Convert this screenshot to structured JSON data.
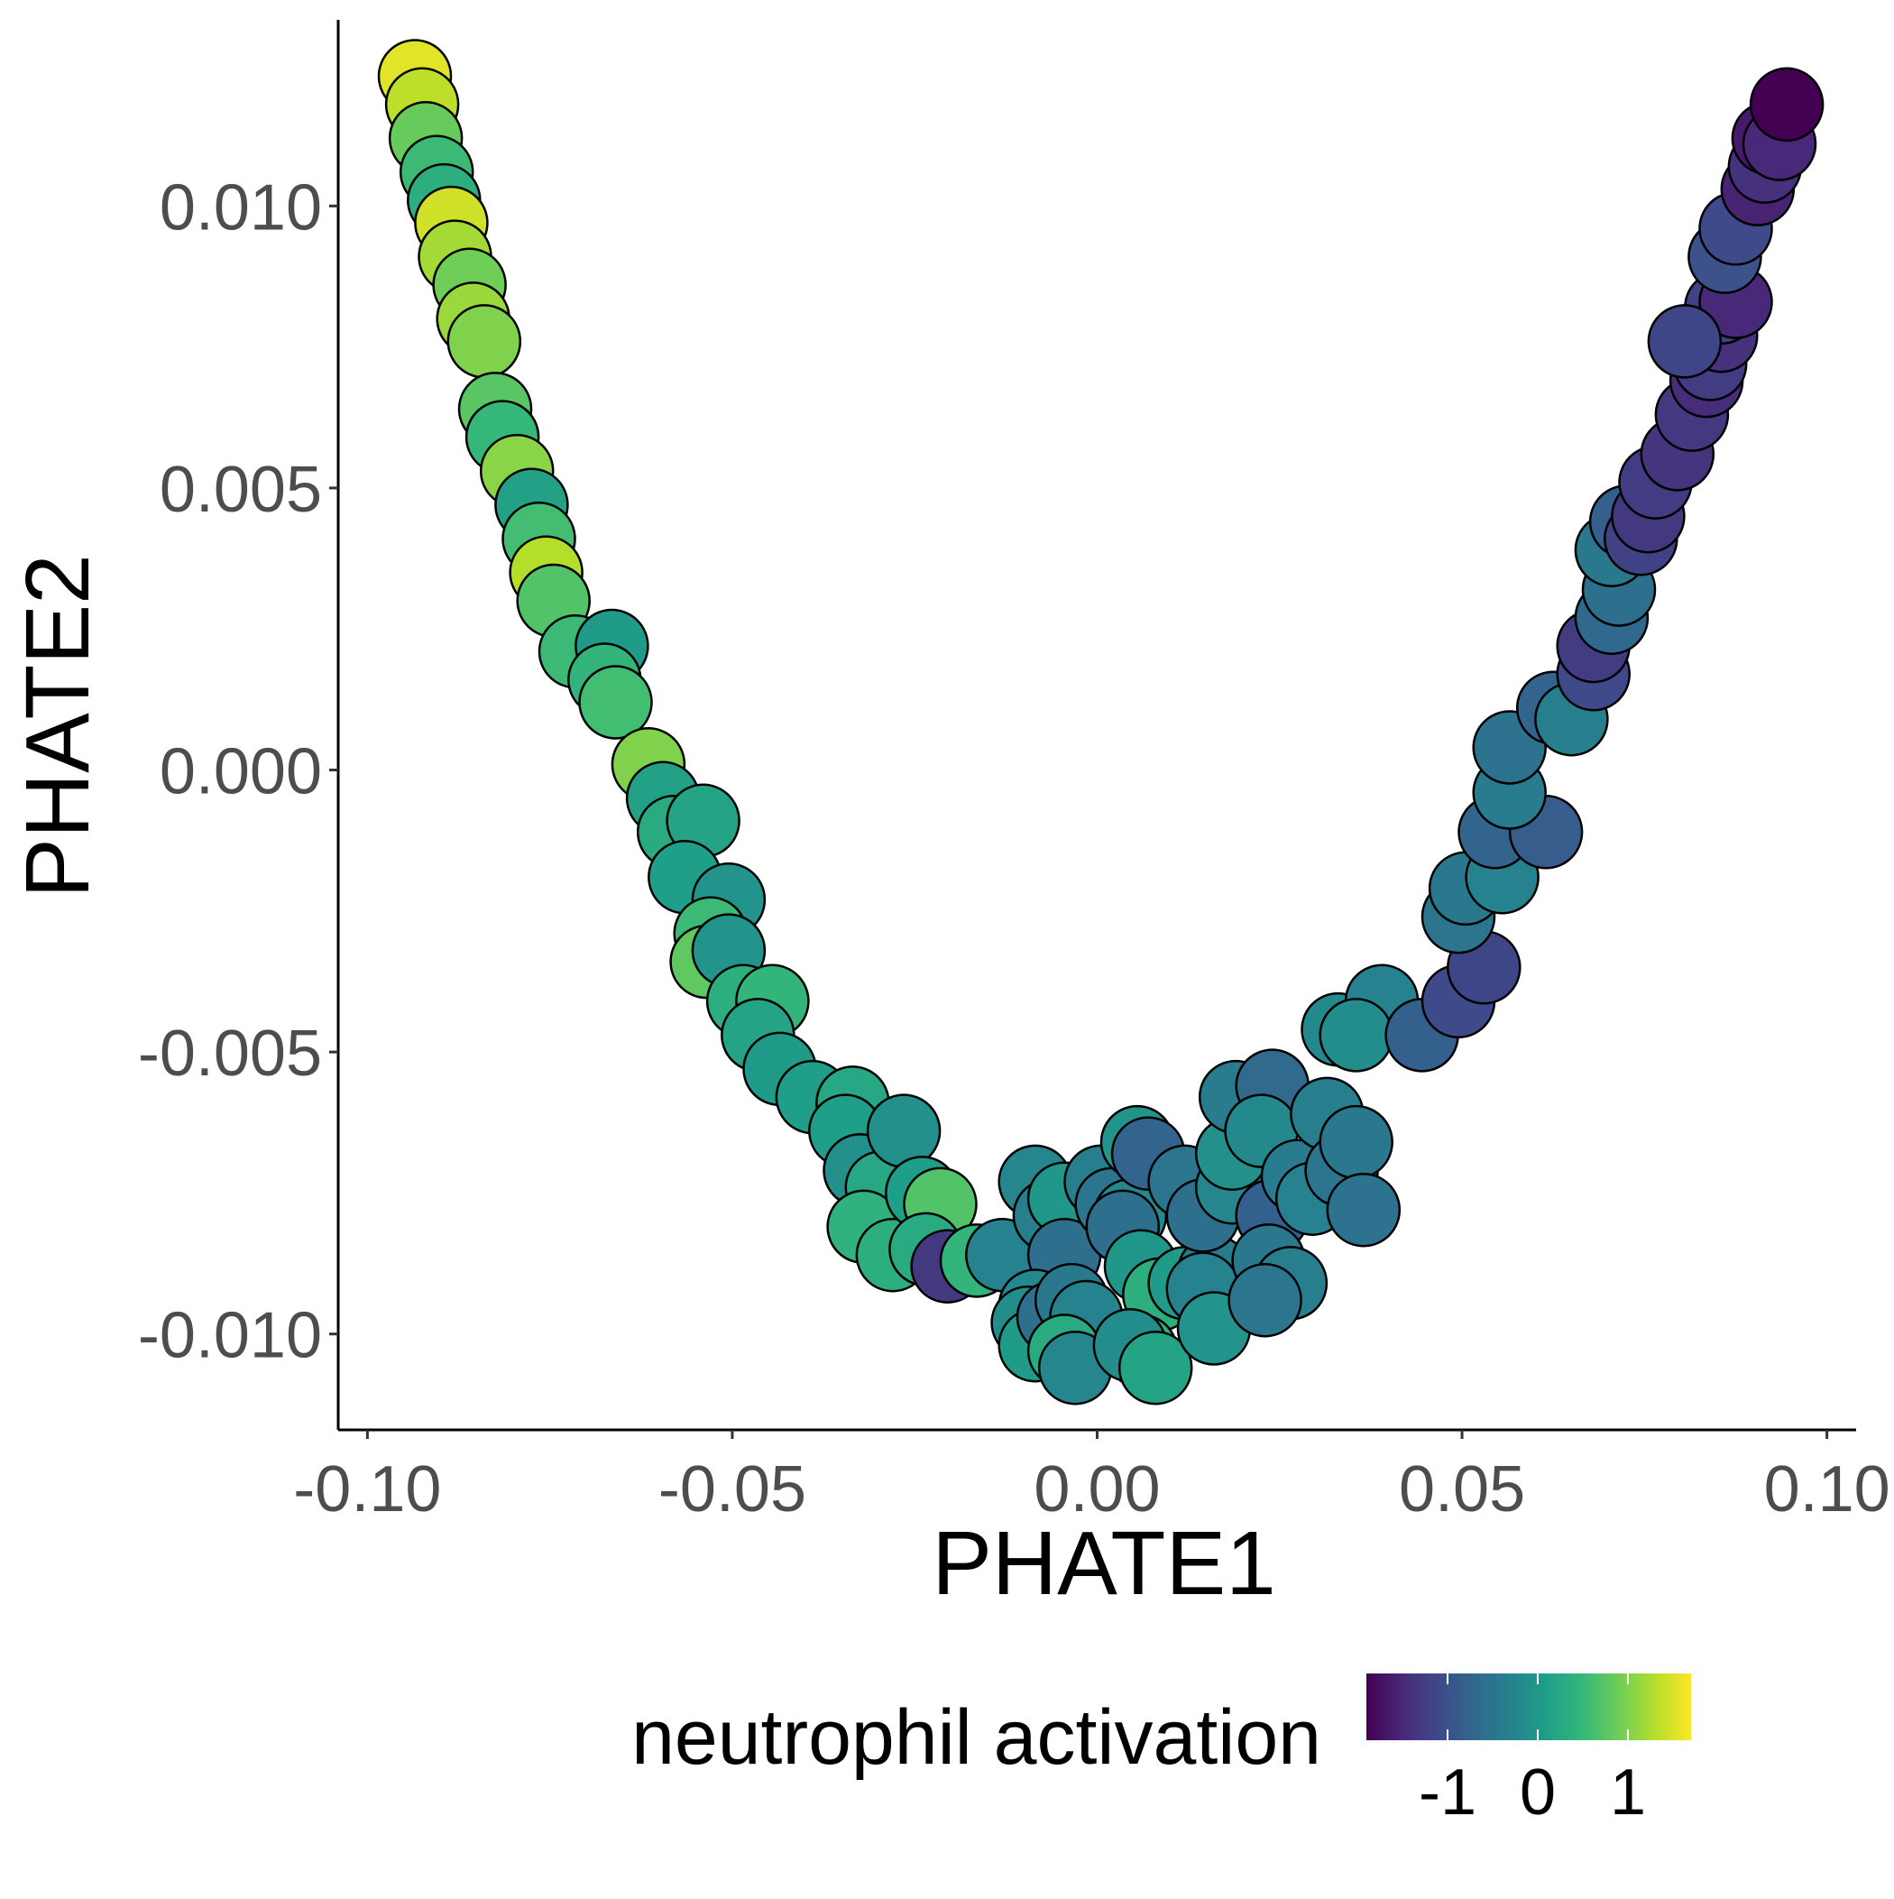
{
  "chart_data": {
    "type": "scatter",
    "title": "",
    "xlabel": "PHATE1",
    "ylabel": "PHATE2",
    "xlim": [
      -0.104,
      0.104
    ],
    "ylim": [
      -0.0117,
      0.0133
    ],
    "xticks": [
      {
        "value": -0.1,
        "label": "-0.10"
      },
      {
        "value": -0.05,
        "label": "-0.05"
      },
      {
        "value": 0.0,
        "label": "0.00"
      },
      {
        "value": 0.05,
        "label": "0.05"
      },
      {
        "value": 0.1,
        "label": "0.10"
      }
    ],
    "yticks": [
      {
        "value": -0.01,
        "label": "-0.010"
      },
      {
        "value": -0.005,
        "label": "-0.005"
      },
      {
        "value": 0.0,
        "label": "0.000"
      },
      {
        "value": 0.005,
        "label": "0.005"
      },
      {
        "value": 0.01,
        "label": "0.010"
      }
    ],
    "grid": false,
    "legend": {
      "title": "neutrophil activation",
      "position": "bottom",
      "type": "colorbar",
      "colormap": "viridis",
      "range": [
        -1.9,
        1.7
      ],
      "ticks": [
        {
          "value": -1,
          "label": "-1"
        },
        {
          "value": 0,
          "label": "0"
        },
        {
          "value": 1,
          "label": "1"
        }
      ]
    },
    "color_variable": "neutrophil activation",
    "points": [
      {
        "x": -0.0935,
        "y": 0.0123,
        "c": 1.55
      },
      {
        "x": -0.0925,
        "y": 0.0118,
        "c": 1.35
      },
      {
        "x": -0.092,
        "y": 0.0112,
        "c": 0.85
      },
      {
        "x": -0.0905,
        "y": 0.0106,
        "c": 0.55
      },
      {
        "x": -0.0895,
        "y": 0.0101,
        "c": 0.35
      },
      {
        "x": -0.0885,
        "y": 0.0097,
        "c": 1.45
      },
      {
        "x": -0.088,
        "y": 0.0091,
        "c": 1.2
      },
      {
        "x": -0.086,
        "y": 0.0086,
        "c": 0.9
      },
      {
        "x": -0.0855,
        "y": 0.008,
        "c": 1.15
      },
      {
        "x": -0.084,
        "y": 0.0076,
        "c": 1.0
      },
      {
        "x": -0.0825,
        "y": 0.0064,
        "c": 0.75
      },
      {
        "x": -0.0815,
        "y": 0.0059,
        "c": 0.5
      },
      {
        "x": -0.0795,
        "y": 0.0053,
        "c": 1.05
      },
      {
        "x": -0.0775,
        "y": 0.0047,
        "c": 0.15
      },
      {
        "x": -0.0765,
        "y": 0.0041,
        "c": 0.6
      },
      {
        "x": -0.0755,
        "y": 0.0035,
        "c": 1.3
      },
      {
        "x": -0.0745,
        "y": 0.003,
        "c": 0.7
      },
      {
        "x": -0.0715,
        "y": 0.0021,
        "c": 0.55
      },
      {
        "x": -0.0665,
        "y": 0.0022,
        "c": 0.05
      },
      {
        "x": -0.0675,
        "y": 0.0016,
        "c": 0.45
      },
      {
        "x": -0.066,
        "y": 0.0012,
        "c": 0.6
      },
      {
        "x": -0.0615,
        "y": 0.0001,
        "c": 1.0
      },
      {
        "x": -0.0595,
        "y": -0.0005,
        "c": 0.15
      },
      {
        "x": -0.058,
        "y": -0.0011,
        "c": 0.3
      },
      {
        "x": -0.054,
        "y": -0.0009,
        "c": 0.2
      },
      {
        "x": -0.0565,
        "y": -0.0019,
        "c": 0.1
      },
      {
        "x": -0.0505,
        "y": -0.0023,
        "c": -0.05
      },
      {
        "x": -0.053,
        "y": -0.0029,
        "c": 0.55
      },
      {
        "x": -0.0535,
        "y": -0.0034,
        "c": 0.8
      },
      {
        "x": -0.0505,
        "y": -0.0032,
        "c": -0.05
      },
      {
        "x": -0.0485,
        "y": -0.0041,
        "c": 0.35
      },
      {
        "x": -0.0445,
        "y": -0.0041,
        "c": 0.45
      },
      {
        "x": -0.0465,
        "y": -0.0047,
        "c": 0.2
      },
      {
        "x": -0.0435,
        "y": -0.0053,
        "c": 0.05
      },
      {
        "x": -0.039,
        "y": -0.0058,
        "c": 0.1
      },
      {
        "x": -0.0335,
        "y": -0.0059,
        "c": 0.25
      },
      {
        "x": -0.0345,
        "y": -0.0064,
        "c": 0.1
      },
      {
        "x": -0.0325,
        "y": -0.0071,
        "c": -0.1
      },
      {
        "x": -0.0295,
        "y": -0.0074,
        "c": 0.25
      },
      {
        "x": -0.032,
        "y": -0.0081,
        "c": 0.4
      },
      {
        "x": -0.028,
        "y": -0.0086,
        "c": 0.35
      },
      {
        "x": -0.0265,
        "y": -0.0064,
        "c": -0.1
      },
      {
        "x": -0.024,
        "y": -0.0075,
        "c": 0.1
      },
      {
        "x": -0.0215,
        "y": -0.0077,
        "c": 0.7
      },
      {
        "x": -0.0235,
        "y": -0.0085,
        "c": 0.3
      },
      {
        "x": -0.0205,
        "y": -0.0088,
        "c": -1.3
      },
      {
        "x": -0.0165,
        "y": -0.0087,
        "c": 0.45
      },
      {
        "x": -0.013,
        "y": -0.0086,
        "c": -0.3
      },
      {
        "x": -0.0085,
        "y": -0.0073,
        "c": -0.25
      },
      {
        "x": -0.0065,
        "y": -0.0079,
        "c": -0.35
      },
      {
        "x": -0.0045,
        "y": -0.0076,
        "c": 0.0
      },
      {
        "x": -0.0045,
        "y": -0.0086,
        "c": -0.6
      },
      {
        "x": -0.0085,
        "y": -0.0095,
        "c": -0.2
      },
      {
        "x": -0.0095,
        "y": -0.0098,
        "c": -0.15
      },
      {
        "x": -0.0085,
        "y": -0.0102,
        "c": 0.05
      },
      {
        "x": -0.006,
        "y": -0.0097,
        "c": -0.6
      },
      {
        "x": -0.0035,
        "y": -0.0094,
        "c": -0.45
      },
      {
        "x": -0.0015,
        "y": -0.0097,
        "c": -0.3
      },
      {
        "x": -0.0045,
        "y": -0.0103,
        "c": 0.3
      },
      {
        "x": -0.003,
        "y": -0.0106,
        "c": -0.25
      },
      {
        "x": 0.0005,
        "y": -0.0073,
        "c": -0.35
      },
      {
        "x": 0.002,
        "y": -0.0077,
        "c": -0.5
      },
      {
        "x": 0.0045,
        "y": -0.0079,
        "c": -0.2
      },
      {
        "x": 0.0055,
        "y": -0.0066,
        "c": -0.05
      },
      {
        "x": 0.007,
        "y": -0.0068,
        "c": -0.75
      },
      {
        "x": 0.0035,
        "y": -0.0081,
        "c": -0.6
      },
      {
        "x": 0.006,
        "y": -0.0088,
        "c": 0.0
      },
      {
        "x": 0.0085,
        "y": -0.0093,
        "c": 0.35
      },
      {
        "x": 0.006,
        "y": -0.0103,
        "c": 0.35
      },
      {
        "x": 0.0045,
        "y": -0.0102,
        "c": -0.15
      },
      {
        "x": 0.008,
        "y": -0.0106,
        "c": 0.2
      },
      {
        "x": 0.012,
        "y": -0.0091,
        "c": 0.05
      },
      {
        "x": 0.016,
        "y": -0.0089,
        "c": -0.4
      },
      {
        "x": 0.0145,
        "y": -0.0092,
        "c": -0.3
      },
      {
        "x": 0.016,
        "y": -0.0099,
        "c": -0.05
      },
      {
        "x": 0.012,
        "y": -0.0073,
        "c": -0.5
      },
      {
        "x": 0.0145,
        "y": -0.0079,
        "c": -0.6
      },
      {
        "x": 0.0185,
        "y": -0.0074,
        "c": -0.25
      },
      {
        "x": 0.0185,
        "y": -0.0068,
        "c": -0.1
      },
      {
        "x": 0.019,
        "y": -0.0058,
        "c": -0.4
      },
      {
        "x": 0.024,
        "y": -0.0056,
        "c": -0.65
      },
      {
        "x": 0.0225,
        "y": -0.0064,
        "c": -0.2
      },
      {
        "x": 0.024,
        "y": -0.0079,
        "c": -0.8
      },
      {
        "x": 0.0235,
        "y": -0.0087,
        "c": -0.45
      },
      {
        "x": 0.0265,
        "y": -0.0091,
        "c": -0.35
      },
      {
        "x": 0.023,
        "y": -0.0094,
        "c": -0.5
      },
      {
        "x": 0.0275,
        "y": -0.0072,
        "c": -0.4
      },
      {
        "x": 0.0295,
        "y": -0.0076,
        "c": -0.3
      },
      {
        "x": 0.0315,
        "y": -0.0061,
        "c": -0.35
      },
      {
        "x": 0.0335,
        "y": -0.0071,
        "c": -0.5
      },
      {
        "x": 0.0355,
        "y": -0.0066,
        "c": -0.45
      },
      {
        "x": 0.0365,
        "y": -0.0078,
        "c": -0.55
      },
      {
        "x": 0.033,
        "y": -0.0046,
        "c": -0.2
      },
      {
        "x": 0.039,
        "y": -0.0041,
        "c": -0.3
      },
      {
        "x": 0.0355,
        "y": -0.0047,
        "c": -0.15
      },
      {
        "x": 0.0445,
        "y": -0.0047,
        "c": -0.8
      },
      {
        "x": 0.0495,
        "y": -0.0041,
        "c": -1.1
      },
      {
        "x": 0.053,
        "y": -0.0035,
        "c": -1.15
      },
      {
        "x": 0.0495,
        "y": -0.0026,
        "c": -0.5
      },
      {
        "x": 0.0505,
        "y": -0.0021,
        "c": -0.45
      },
      {
        "x": 0.0555,
        "y": -0.0019,
        "c": -0.3
      },
      {
        "x": 0.0545,
        "y": -0.0011,
        "c": -0.75
      },
      {
        "x": 0.0615,
        "y": -0.0011,
        "c": -0.85
      },
      {
        "x": 0.0565,
        "y": -0.0004,
        "c": -0.4
      },
      {
        "x": 0.0565,
        "y": 0.0004,
        "c": -0.55
      },
      {
        "x": 0.0625,
        "y": 0.0011,
        "c": -0.75
      },
      {
        "x": 0.065,
        "y": 0.0009,
        "c": -0.35
      },
      {
        "x": 0.068,
        "y": 0.0017,
        "c": -1.1
      },
      {
        "x": 0.068,
        "y": 0.0022,
        "c": -1.25
      },
      {
        "x": 0.0705,
        "y": 0.0027,
        "c": -0.7
      },
      {
        "x": 0.0715,
        "y": 0.0032,
        "c": -0.6
      },
      {
        "x": 0.0705,
        "y": 0.0039,
        "c": -0.45
      },
      {
        "x": 0.0725,
        "y": 0.0044,
        "c": -0.8
      },
      {
        "x": 0.0745,
        "y": 0.0041,
        "c": -1.2
      },
      {
        "x": 0.0755,
        "y": 0.0045,
        "c": -1.3
      },
      {
        "x": 0.0765,
        "y": 0.0051,
        "c": -1.25
      },
      {
        "x": 0.0795,
        "y": 0.0056,
        "c": -1.35
      },
      {
        "x": 0.0815,
        "y": 0.0063,
        "c": -1.3
      },
      {
        "x": 0.0835,
        "y": 0.0069,
        "c": -1.45
      },
      {
        "x": 0.084,
        "y": 0.0072,
        "c": -1.25
      },
      {
        "x": 0.0855,
        "y": 0.0077,
        "c": -1.4
      },
      {
        "x": 0.0855,
        "y": 0.0082,
        "c": -1.2
      },
      {
        "x": 0.0875,
        "y": 0.0083,
        "c": -1.5
      },
      {
        "x": 0.0805,
        "y": 0.0076,
        "c": -1.15
      },
      {
        "x": 0.086,
        "y": 0.0091,
        "c": -1.0
      },
      {
        "x": 0.0875,
        "y": 0.0096,
        "c": -1.1
      },
      {
        "x": 0.0905,
        "y": 0.0103,
        "c": -1.55
      },
      {
        "x": 0.0915,
        "y": 0.0107,
        "c": -1.4
      },
      {
        "x": 0.092,
        "y": 0.0112,
        "c": -1.65
      },
      {
        "x": 0.0935,
        "y": 0.0111,
        "c": -1.5
      },
      {
        "x": 0.0945,
        "y": 0.0118,
        "c": -1.9
      }
    ]
  }
}
